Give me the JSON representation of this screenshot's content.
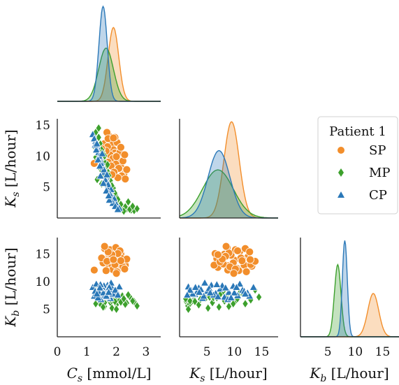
{
  "chart_data": {
    "type": "pairplot",
    "variables": [
      {
        "key": "Cs",
        "label_var": "C",
        "label_sub": "s",
        "unit": " [mmol/L]",
        "range": [
          0,
          3.5
        ],
        "ticks": [
          0,
          1,
          2,
          3
        ]
      },
      {
        "key": "Ks",
        "label_var": "K",
        "label_sub": "s",
        "unit": " [L/hour]",
        "range": [
          0,
          18
        ],
        "ticks": [
          5,
          10,
          15
        ]
      },
      {
        "key": "Kb",
        "label_var": "K",
        "label_sub": "b",
        "unit": " [L/hour]",
        "range": [
          0,
          18
        ],
        "ticks": [
          5,
          10,
          15
        ]
      }
    ],
    "row_ranges": {
      "Ks": [
        0,
        16
      ],
      "Kb": [
        0,
        18
      ]
    },
    "legend": {
      "title": "Patient 1",
      "placement": "right"
    },
    "series": [
      {
        "name": "SP",
        "color": "#f28e2b",
        "marker": "circle",
        "Cs": {
          "mean": 1.9,
          "sd": 0.18
        },
        "Ks": {
          "mean": 9.5,
          "sd": 1.4
        },
        "Kb": {
          "mean": 13.3,
          "sd": 1.0
        },
        "points": [
          [
            1.75,
            13.2,
            12.8
          ],
          [
            1.8,
            12.5,
            14.5
          ],
          [
            1.85,
            11.8,
            13.0
          ],
          [
            1.9,
            11.0,
            15.5
          ],
          [
            1.95,
            10.5,
            12.4
          ],
          [
            2.0,
            10.0,
            13.9
          ],
          [
            2.05,
            9.4,
            14.8
          ],
          [
            2.1,
            8.9,
            12.9
          ],
          [
            2.15,
            8.2,
            15.0
          ],
          [
            2.2,
            7.6,
            13.5
          ],
          [
            2.25,
            7.0,
            12.6
          ],
          [
            1.6,
            12.0,
            16.0
          ],
          [
            1.7,
            11.5,
            14.0
          ],
          [
            1.78,
            10.2,
            15.8
          ],
          [
            1.88,
            9.6,
            12.2
          ],
          [
            1.98,
            8.7,
            16.2
          ],
          [
            2.08,
            8.0,
            13.2
          ],
          [
            2.18,
            6.8,
            14.2
          ],
          [
            2.3,
            6.3,
            13.0
          ],
          [
            1.65,
            10.8,
            12.0
          ],
          [
            1.72,
            9.0,
            15.2
          ],
          [
            1.82,
            8.4,
            14.6
          ],
          [
            1.92,
            7.4,
            13.6
          ],
          [
            2.02,
            12.2,
            11.8
          ],
          [
            2.12,
            10.6,
            15.6
          ],
          [
            1.55,
            9.8,
            13.4
          ],
          [
            1.25,
            8.8,
            12.1
          ],
          [
            1.5,
            11.2,
            14.3
          ],
          [
            2.22,
            9.2,
            12.7
          ],
          [
            2.35,
            7.8,
            14.1
          ],
          [
            1.95,
            13.0,
            13.1
          ],
          [
            2.05,
            6.5,
            15.1
          ],
          [
            1.68,
            13.8,
            13.7
          ],
          [
            2.28,
            10.2,
            12.3
          ],
          [
            1.85,
            7.0,
            14.9
          ],
          [
            1.72,
            12.8,
            15.4
          ],
          [
            2.15,
            11.4,
            13.8
          ],
          [
            1.6,
            8.5,
            16.4
          ],
          [
            2.0,
            9.9,
            11.5
          ],
          [
            1.9,
            12.9,
            14.0
          ]
        ]
      },
      {
        "name": "MP",
        "color": "#3ca02c",
        "marker": "diamond",
        "Cs": {
          "mean": 1.65,
          "sd": 0.25
        },
        "Ks": {
          "mean": 7.0,
          "sd": 2.8
        },
        "Kb": {
          "mean": 6.8,
          "sd": 0.6
        },
        "points": [
          [
            1.3,
            13.8,
            8.5
          ],
          [
            1.4,
            14.5,
            7.2
          ],
          [
            1.45,
            12.0,
            6.0
          ],
          [
            1.55,
            10.5,
            6.8
          ],
          [
            1.6,
            9.0,
            5.5
          ],
          [
            1.7,
            7.5,
            7.8
          ],
          [
            1.8,
            6.0,
            6.2
          ],
          [
            1.9,
            4.8,
            7.0
          ],
          [
            2.0,
            3.5,
            5.8
          ],
          [
            2.1,
            2.5,
            6.6
          ],
          [
            2.2,
            2.0,
            7.4
          ],
          [
            2.35,
            1.5,
            6.1
          ],
          [
            2.5,
            1.3,
            7.0
          ],
          [
            2.6,
            1.2,
            6.4
          ],
          [
            2.7,
            1.5,
            5.6
          ],
          [
            1.35,
            12.5,
            7.6
          ],
          [
            1.5,
            11.0,
            8.0
          ],
          [
            1.65,
            8.2,
            6.5
          ],
          [
            1.75,
            6.8,
            7.1
          ],
          [
            1.85,
            5.2,
            5.2
          ],
          [
            1.95,
            4.0,
            6.9
          ],
          [
            2.05,
            3.0,
            7.7
          ],
          [
            2.15,
            2.2,
            6.3
          ],
          [
            2.3,
            1.8,
            5.9
          ],
          [
            2.45,
            1.4,
            7.3
          ],
          [
            1.4,
            13.0,
            6.7
          ],
          [
            1.25,
            11.5,
            7.9
          ],
          [
            1.6,
            10.0,
            6.2
          ],
          [
            1.7,
            8.6,
            7.5
          ],
          [
            1.55,
            7.2,
            5.4
          ],
          [
            1.3,
            9.8,
            6.0
          ],
          [
            2.4,
            2.6,
            7.6
          ],
          [
            1.8,
            3.8,
            6.8
          ],
          [
            2.55,
            1.9,
            6.5
          ],
          [
            1.5,
            5.5,
            7.2
          ],
          [
            2.0,
            1.6,
            5.0
          ],
          [
            1.45,
            8.0,
            8.3
          ],
          [
            2.25,
            1.1,
            6.9
          ],
          [
            1.35,
            6.2,
            7.1
          ],
          [
            1.95,
            2.8,
            6.4
          ]
        ]
      },
      {
        "name": "CP",
        "color": "#2a78b8",
        "marker": "triangle",
        "Cs": {
          "mean": 1.55,
          "sd": 0.14
        },
        "Ks": {
          "mean": 7.2,
          "sd": 2.0
        },
        "Kb": {
          "mean": 8.1,
          "sd": 0.45
        },
        "points": [
          [
            1.2,
            13.5,
            9.0
          ],
          [
            1.3,
            12.4,
            8.0
          ],
          [
            1.35,
            11.5,
            8.5
          ],
          [
            1.4,
            10.6,
            7.5
          ],
          [
            1.45,
            9.8,
            9.2
          ],
          [
            1.5,
            9.0,
            8.1
          ],
          [
            1.55,
            8.2,
            7.2
          ],
          [
            1.6,
            7.4,
            8.7
          ],
          [
            1.65,
            6.6,
            7.9
          ],
          [
            1.7,
            5.8,
            9.4
          ],
          [
            1.75,
            5.0,
            8.3
          ],
          [
            1.8,
            4.2,
            7.0
          ],
          [
            1.85,
            3.5,
            8.9
          ],
          [
            1.9,
            2.8,
            7.7
          ],
          [
            2.0,
            2.2,
            8.4
          ],
          [
            2.1,
            1.6,
            9.1
          ],
          [
            1.25,
            12.8,
            7.4
          ],
          [
            1.32,
            11.0,
            9.6
          ],
          [
            1.42,
            10.0,
            8.0
          ],
          [
            1.48,
            8.8,
            6.8
          ],
          [
            1.58,
            7.8,
            9.3
          ],
          [
            1.62,
            6.2,
            7.6
          ],
          [
            1.72,
            5.4,
            8.8
          ],
          [
            1.82,
            4.6,
            9.8
          ],
          [
            1.92,
            3.2,
            8.2
          ],
          [
            1.38,
            9.4,
            7.1
          ],
          [
            1.52,
            10.4,
            9.0
          ],
          [
            1.68,
            7.0,
            7.3
          ],
          [
            1.78,
            3.9,
            8.6
          ],
          [
            1.88,
            2.4,
            7.8
          ],
          [
            1.28,
            11.8,
            8.3
          ],
          [
            1.46,
            6.8,
            9.5
          ],
          [
            1.56,
            5.6,
            8.0
          ],
          [
            1.66,
            4.4,
            7.4
          ],
          [
            1.76,
            2.9,
            9.0
          ],
          [
            1.96,
            1.9,
            8.5
          ],
          [
            2.05,
            1.4,
            7.6
          ],
          [
            1.44,
            8.4,
            8.9
          ],
          [
            1.34,
            12.0,
            7.8
          ],
          [
            1.74,
            3.6,
            8.1
          ]
        ]
      }
    ]
  }
}
